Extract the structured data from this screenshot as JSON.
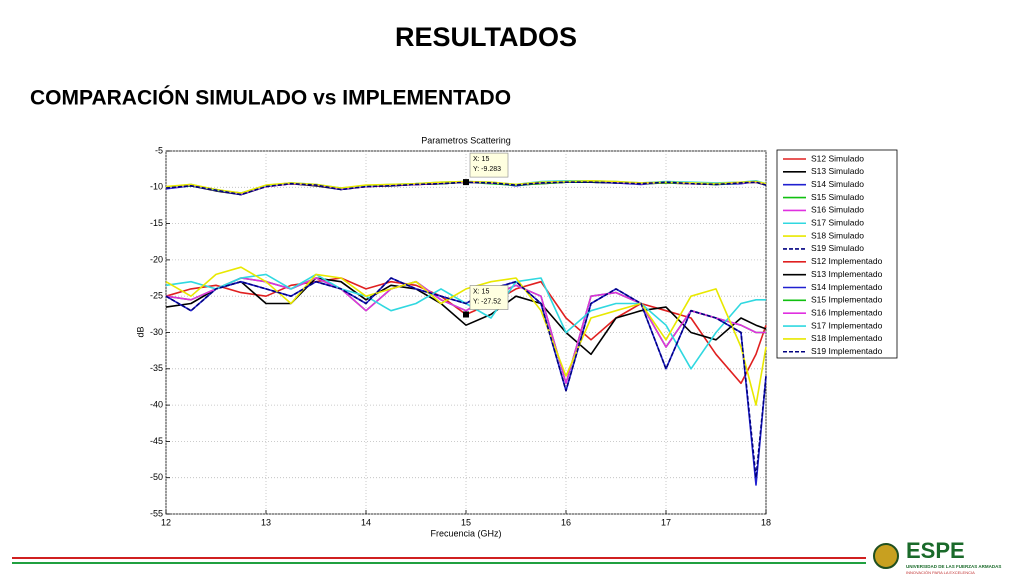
{
  "slide": {
    "title": "RESULTADOS",
    "subtitle": "COMPARACIÓN SIMULADO vs IMPLEMENTADO",
    "logo": "ESPE",
    "logo_line1": "UNIVERSIDAD DE LAS FUERZAS ARMADAS",
    "logo_line2": "INNOVACIÓN PARA LA EXCELENCIA"
  },
  "chart_data": {
    "type": "line",
    "title": "Parametros Scattering",
    "xlabel": "Frecuencia (GHz)",
    "ylabel": "dB",
    "x": [
      12,
      12.25,
      12.5,
      12.75,
      13,
      13.25,
      13.5,
      13.75,
      14,
      14.25,
      14.5,
      14.75,
      15,
      15.25,
      15.5,
      15.75,
      16,
      16.25,
      16.5,
      16.75,
      17,
      17.25,
      17.5,
      17.75,
      17.9,
      18
    ],
    "xlim": [
      12,
      18
    ],
    "xticks": [
      12,
      13,
      14,
      15,
      16,
      17,
      18
    ],
    "ylim": [
      -55,
      -5
    ],
    "yticks": [
      -55,
      -50,
      -45,
      -40,
      -35,
      -30,
      -25,
      -20,
      -15,
      -10,
      -5
    ],
    "grid": true,
    "legend": "right",
    "series": [
      {
        "name": "S12 Simulado",
        "color": "#e02020",
        "values": [
          -10,
          -9.7,
          -10.4,
          -10.8,
          -9.8,
          -9.5,
          -9.7,
          -10.2,
          -9.9,
          -9.7,
          -9.6,
          -9.5,
          -9.3,
          -9.4,
          -9.7,
          -9.5,
          -9.3,
          -9.2,
          -9.3,
          -9.5,
          -9.4,
          -9.5,
          -9.6,
          -9.4,
          -9.3,
          -9.6
        ]
      },
      {
        "name": "S13 Simulado",
        "color": "#000000",
        "values": [
          -10.1,
          -9.8,
          -10.5,
          -11,
          -9.9,
          -9.5,
          -9.8,
          -10.3,
          -9.9,
          -9.8,
          -9.6,
          -9.5,
          -9.283,
          -9.4,
          -9.7,
          -9.4,
          -9.3,
          -9.3,
          -9.4,
          -9.5,
          -9.3,
          -9.5,
          -9.5,
          -9.4,
          -9.3,
          -9.7
        ]
      },
      {
        "name": "S14 Simulado",
        "color": "#2020d0",
        "values": [
          -10.2,
          -9.8,
          -10.4,
          -11,
          -9.8,
          -9.4,
          -9.7,
          -10.3,
          -9.8,
          -9.7,
          -9.6,
          -9.4,
          -9.3,
          -9.4,
          -9.8,
          -9.4,
          -9.2,
          -9.2,
          -9.4,
          -9.6,
          -9.3,
          -9.4,
          -9.6,
          -9.5,
          -9.2,
          -9.6
        ]
      },
      {
        "name": "S15 Simulado",
        "color": "#10c010",
        "values": [
          -10,
          -9.8,
          -10.3,
          -10.9,
          -9.8,
          -9.5,
          -9.7,
          -10.2,
          -9.8,
          -9.7,
          -9.5,
          -9.5,
          -9.3,
          -9.5,
          -9.7,
          -9.5,
          -9.3,
          -9.2,
          -9.3,
          -9.5,
          -9.4,
          -9.5,
          -9.6,
          -9.4,
          -9.3,
          -9.6
        ]
      },
      {
        "name": "S16 Simulado",
        "color": "#e030e0",
        "values": [
          -10.1,
          -9.7,
          -10.4,
          -10.9,
          -9.9,
          -9.5,
          -9.7,
          -10.2,
          -9.9,
          -9.7,
          -9.6,
          -9.4,
          -9.3,
          -9.4,
          -9.6,
          -9.4,
          -9.2,
          -9.1,
          -9.3,
          -9.5,
          -9.3,
          -9.5,
          -9.5,
          -9.4,
          -9.3,
          -9.6
        ]
      },
      {
        "name": "S17 Simulado",
        "color": "#30d8e0",
        "values": [
          -10,
          -9.6,
          -10.4,
          -10.8,
          -9.8,
          -9.4,
          -9.6,
          -10.1,
          -9.8,
          -9.6,
          -9.5,
          -9.3,
          -9.2,
          -9.3,
          -9.6,
          -9.2,
          -9.1,
          -9.1,
          -9.2,
          -9.4,
          -9.2,
          -9.3,
          -9.4,
          -9.3,
          -9.1,
          -9.5
        ]
      },
      {
        "name": "S18 Simulado",
        "color": "#e8e800",
        "values": [
          -9.9,
          -9.6,
          -10.3,
          -10.8,
          -9.7,
          -9.4,
          -9.6,
          -10.1,
          -9.7,
          -9.6,
          -9.5,
          -9.3,
          -9.2,
          -9.3,
          -9.6,
          -9.3,
          -9.2,
          -9.1,
          -9.2,
          -9.4,
          -9.3,
          -9.4,
          -9.5,
          -9.3,
          -9.2,
          -9.5
        ]
      },
      {
        "name": "S19 Simulado",
        "color": "#000080",
        "dashed": true,
        "values": [
          -10.1,
          -9.8,
          -10.4,
          -11,
          -9.9,
          -9.5,
          -9.7,
          -10.3,
          -9.9,
          -9.8,
          -9.6,
          -9.5,
          -9.3,
          -9.4,
          -9.7,
          -9.4,
          -9.3,
          -9.3,
          -9.4,
          -9.5,
          -9.3,
          -9.5,
          -9.6,
          -9.4,
          -9.3,
          -9.7
        ]
      },
      {
        "name": "S12 Implementado",
        "color": "#e02020",
        "values": [
          -25,
          -24,
          -23.5,
          -24.5,
          -25,
          -23.5,
          -23,
          -22.5,
          -24,
          -23,
          -23.5,
          -25,
          -27.52,
          -26,
          -24,
          -23,
          -28,
          -31,
          -28,
          -26,
          -27,
          -28,
          -33,
          -37,
          -33,
          -29
        ]
      },
      {
        "name": "S13 Implementado",
        "color": "#000000",
        "values": [
          -26.5,
          -26,
          -24,
          -23,
          -26,
          -26,
          -22.5,
          -23,
          -25.5,
          -23.5,
          -24,
          -26,
          -29,
          -27.5,
          -25,
          -26,
          -30,
          -33,
          -28,
          -27,
          -26.5,
          -30,
          -31,
          -28,
          -29,
          -29.5
        ]
      },
      {
        "name": "S14 Implementado",
        "color": "#2020d0",
        "values": [
          -25,
          -27,
          -24,
          -23,
          -24,
          -25,
          -23,
          -24,
          -26,
          -22.5,
          -24,
          -25,
          -26,
          -24,
          -23,
          -26,
          -38,
          -26,
          -24,
          -26,
          -35,
          -27,
          -28,
          -30,
          -51,
          -36
        ]
      },
      {
        "name": "S15 Implementado",
        "color": "#10c010",
        "values": [
          -25,
          -25.5,
          -24,
          -22.5,
          -23,
          -24,
          -22.5,
          -24,
          -27,
          -24,
          -23,
          -25.5,
          -27,
          -25,
          -23.5,
          -25,
          -37,
          -25,
          -24.5,
          -26,
          -32,
          -27,
          -28,
          -29,
          -30,
          -30
        ]
      },
      {
        "name": "S16 Implementado",
        "color": "#e030e0",
        "values": [
          -25,
          -25.5,
          -24,
          -22.5,
          -23,
          -24,
          -22.5,
          -24,
          -27,
          -24,
          -23,
          -25.5,
          -27,
          -25,
          -23.5,
          -25,
          -37,
          -25,
          -24.5,
          -26,
          -32,
          -27,
          -28,
          -29,
          -30,
          -30
        ]
      },
      {
        "name": "S17 Implementado",
        "color": "#30d8e0",
        "values": [
          -23.5,
          -23,
          -24,
          -22.5,
          -22,
          -24,
          -22,
          -24,
          -25,
          -27,
          -26,
          -24,
          -26,
          -28,
          -23,
          -22.5,
          -30,
          -27,
          -26,
          -26,
          -29,
          -35,
          -30,
          -26,
          -25.5,
          -25.5
        ]
      },
      {
        "name": "S18 Implementado",
        "color": "#e8e800",
        "values": [
          -23,
          -25,
          -22,
          -21,
          -23,
          -26,
          -22,
          -22.5,
          -25,
          -24,
          -23,
          -26,
          -24,
          -23,
          -22.5,
          -27,
          -36,
          -28,
          -27,
          -26,
          -31,
          -25,
          -24,
          -32,
          -40,
          -32
        ]
      },
      {
        "name": "S19 Implementado",
        "color": "#000080",
        "dashed": true,
        "values": [
          -25,
          -27,
          -24,
          -23,
          -24,
          -25,
          -23,
          -24,
          -26,
          -22.5,
          -24,
          -25,
          -26,
          -24,
          -23,
          -26,
          -38,
          -26,
          -24,
          -26,
          -35,
          -27,
          -28,
          -30,
          -50,
          -36
        ]
      }
    ],
    "annotations": [
      {
        "x": 15,
        "y": -9.283,
        "lines": [
          "X: 15",
          "Y: -9.283"
        ]
      },
      {
        "x": 15,
        "y": -27.52,
        "lines": [
          "X: 15",
          "Y: -27.52"
        ]
      }
    ]
  }
}
